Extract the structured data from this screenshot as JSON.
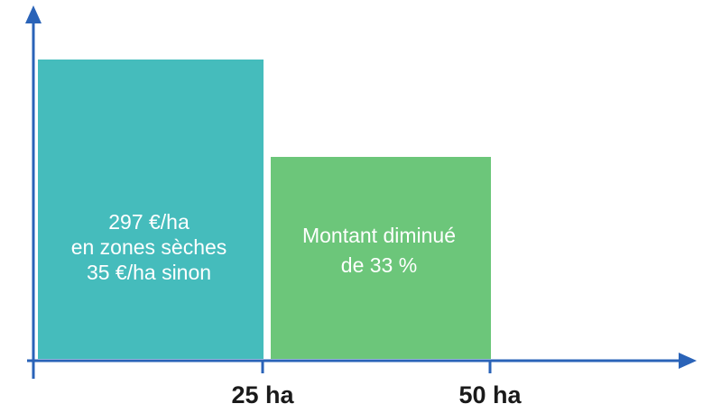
{
  "blocks": [
    {
      "lines": [
        "297 €/ha",
        "en zones sèches",
        "35 €/ha sinon"
      ]
    },
    {
      "lines": [
        "Montant diminué",
        "de 33 %"
      ]
    }
  ],
  "axis": {
    "ticks": [
      "25 ha",
      "50 ha"
    ]
  }
}
